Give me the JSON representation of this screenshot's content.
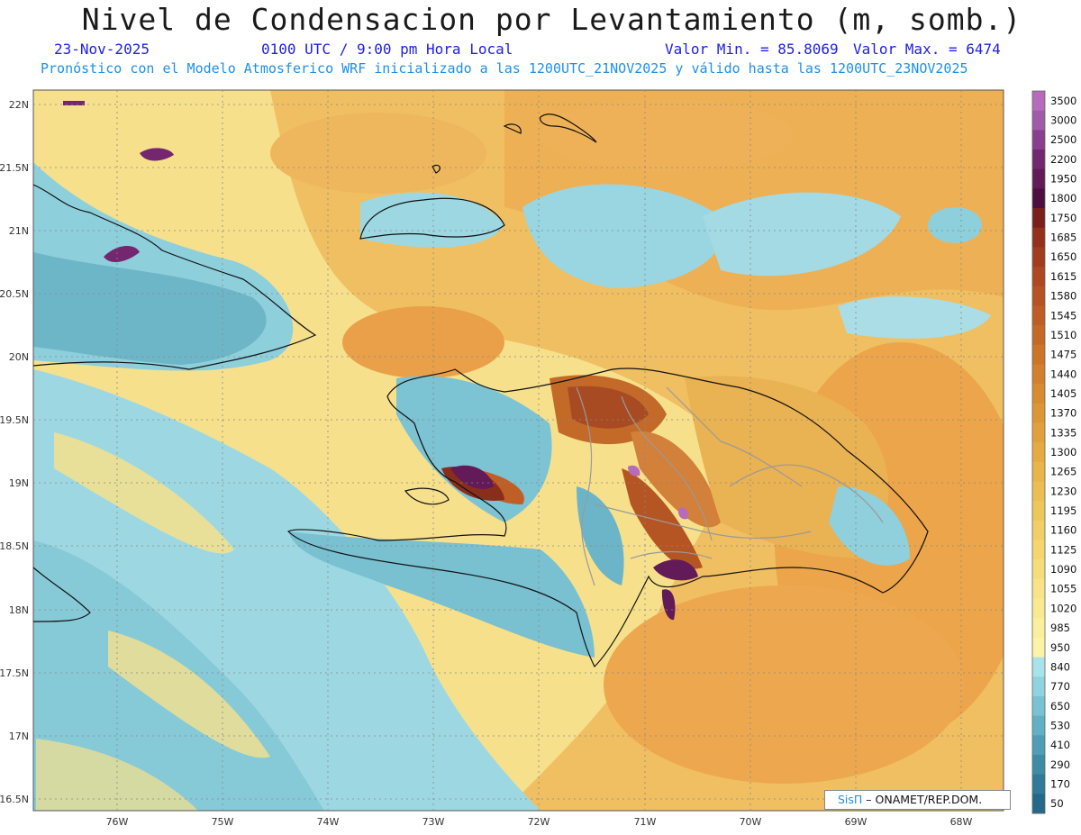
{
  "header": {
    "title": "Nivel de Condensacion por Levantamiento (m, somb.)",
    "date": "23-Nov-2025",
    "time": "0100 UTC / 9:00 pm Hora Local",
    "min_value": "Valor Min. = 85.8069",
    "max_value": "Valor Max. = 6474",
    "model_info": "Pronóstico con el Modelo Atmosferico WRF inicializado a las 1200UTC_21NOV2025 y válido hasta las  1200UTC_23NOV2025"
  },
  "map": {
    "lat_labels": [
      "22N",
      "21.5N",
      "21N",
      "20.5N",
      "20N",
      "19.5N",
      "19N",
      "18.5N",
      "18N",
      "17.5N",
      "17N",
      "16.5N"
    ],
    "lon_labels": [
      "76W",
      "75W",
      "74W",
      "73W",
      "72W",
      "71W",
      "70W",
      "69W",
      "68W"
    ],
    "credit_logo": "SisΠ",
    "credit_text": " – ONAMET/REP.DOM."
  },
  "colorbar": {
    "labels": [
      "3500",
      "3000",
      "2500",
      "2200",
      "1950",
      "1800",
      "1750",
      "1685",
      "1650",
      "1615",
      "1580",
      "1545",
      "1510",
      "1475",
      "1440",
      "1405",
      "1370",
      "1335",
      "1300",
      "1265",
      "1230",
      "1195",
      "1160",
      "1125",
      "1090",
      "1055",
      "1020",
      "985",
      "950",
      "840",
      "770",
      "650",
      "530",
      "410",
      "290",
      "170",
      "50"
    ],
    "colors": [
      "#b66cba",
      "#a05aa8",
      "#8a3f8e",
      "#74266f",
      "#621a58",
      "#4e0e3e",
      "#7a1f1c",
      "#95301c",
      "#a33c1e",
      "#ad4820",
      "#b65322",
      "#be5e24",
      "#c56a26",
      "#cc7529",
      "#d2802d",
      "#d88b31",
      "#dd9636",
      "#e2a03c",
      "#e6aa42",
      "#e9b44a",
      "#ecbd53",
      "#efc65c",
      "#f2ce66",
      "#f4d671",
      "#f6dd7c",
      "#f8e487",
      "#f9ea92",
      "#faef9d",
      "#fbf3a6",
      "#a8e2ea",
      "#8fd3e0",
      "#78c2d2",
      "#62b0c3",
      "#4f9eb5",
      "#3d8ca6",
      "#2f7b97",
      "#246a88"
    ],
    "scale_low_color": "#3f8fa8",
    "scale_high_color": "#ee9a3a"
  }
}
